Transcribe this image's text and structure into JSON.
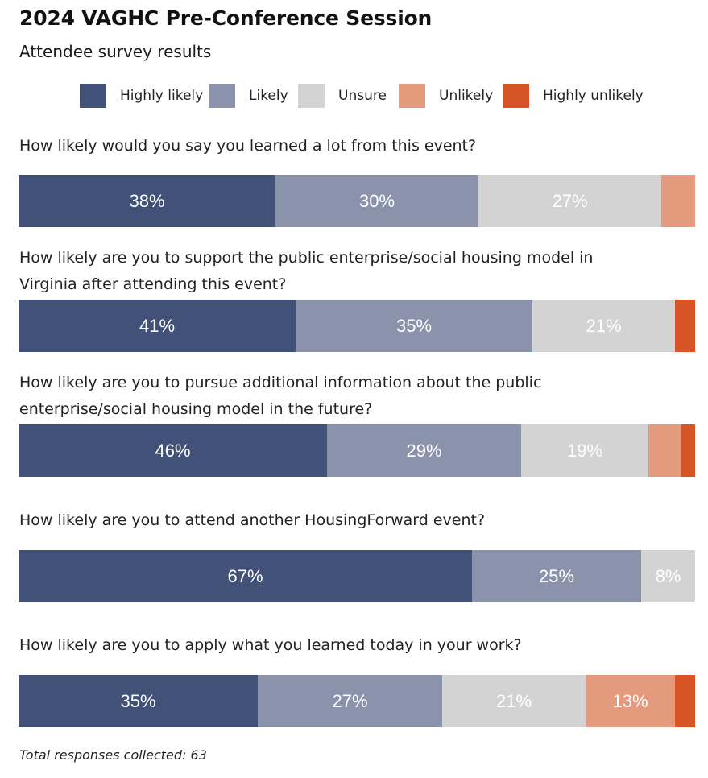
{
  "chart_data": {
    "type": "bar",
    "orientation": "horizontal",
    "stacked": true,
    "title": "2024 VAGHC Pre-Conference Session",
    "subtitle": "Attendee survey results",
    "legend_position": "top",
    "xlim": [
      0,
      100
    ],
    "series": [
      {
        "name": "Highly likely",
        "color": "#415178"
      },
      {
        "name": "Likely",
        "color": "#8b92ab"
      },
      {
        "name": "Unsure",
        "color": "#d3d3d3"
      },
      {
        "name": "Unlikely",
        "color": "#e39a7d"
      },
      {
        "name": "Highly unlikely",
        "color": "#d65426"
      }
    ],
    "categories": [
      "How likely would you say you learned a lot from this event?",
      "How likely are you to support the public enterprise/social housing model in Virginia after attending this event?",
      "How likely are you to pursue additional information about the public enterprise/social housing model in the future?",
      "How likely are you to attend another HousingForward event?",
      "How likely are you to apply what you learned today in your work?"
    ],
    "values": [
      [
        38,
        30,
        27,
        5,
        0
      ],
      [
        41,
        35,
        21,
        0,
        3
      ],
      [
        46,
        29,
        19,
        5,
        2
      ],
      [
        67,
        25,
        8,
        0,
        0
      ],
      [
        35,
        27,
        21,
        13,
        3
      ]
    ],
    "data_labels": [
      [
        "38%",
        "30%",
        "27%",
        "",
        ""
      ],
      [
        "41%",
        "35%",
        "21%",
        "",
        ""
      ],
      [
        "46%",
        "29%",
        "19%",
        "",
        ""
      ],
      [
        "67%",
        "25%",
        "8%",
        "",
        ""
      ],
      [
        "35%",
        "27%",
        "21%",
        "13%",
        ""
      ]
    ],
    "footnote": "Total responses collected: 63"
  }
}
